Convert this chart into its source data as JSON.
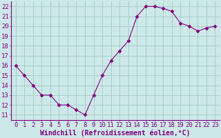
{
  "x": [
    0,
    1,
    2,
    3,
    4,
    5,
    6,
    7,
    8,
    9,
    10,
    11,
    12,
    13,
    14,
    15,
    16,
    17,
    18,
    19,
    20,
    21,
    22,
    23
  ],
  "y": [
    16,
    15,
    14,
    13,
    13,
    12,
    12,
    11.5,
    11,
    13,
    15,
    16.5,
    17.5,
    18.5,
    21,
    22,
    22,
    21.8,
    21.5,
    20.3,
    20,
    19.5,
    19.8,
    20
  ],
  "line_color": "#800080",
  "marker": "D",
  "marker_size": 2.5,
  "bg_color": "#cce8e8",
  "grid_color": "#aacccc",
  "xlabel": "Windchill (Refroidissement éolien,°C)",
  "xlabel_color": "#800080",
  "xlabel_fontsize": 7,
  "ylabel_ticks": [
    11,
    12,
    13,
    14,
    15,
    16,
    17,
    18,
    19,
    20,
    21,
    22
  ],
  "ylim": [
    10.5,
    22.5
  ],
  "xlim": [
    -0.5,
    23.5
  ],
  "tick_fontsize": 6.5,
  "tick_color": "#800080",
  "spine_color": "#800080"
}
